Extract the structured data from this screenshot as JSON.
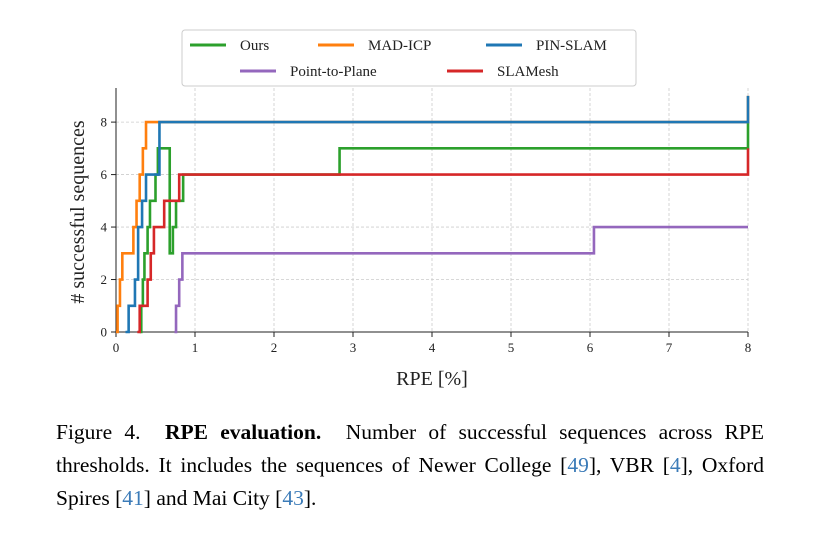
{
  "chart_data": {
    "type": "line",
    "subtype": "step",
    "xlabel": "RPE [%]",
    "ylabel": "# successful sequences",
    "xlim": [
      0,
      8
    ],
    "ylim": [
      0,
      9.3
    ],
    "x_ticks": [
      0,
      1,
      2,
      3,
      4,
      5,
      6,
      7,
      8
    ],
    "y_ticks": [
      0,
      2,
      4,
      6,
      8
    ],
    "grid": true,
    "legend_position": "top-center",
    "series": [
      {
        "name": "Ours",
        "color": "#2ca02c",
        "x": [
          0.3,
          0.32,
          0.34,
          0.36,
          0.4,
          0.43,
          0.5,
          0.53,
          0.68,
          0.72,
          0.76,
          0.85,
          2.83,
          8.0
        ],
        "y": [
          0,
          1,
          2,
          3,
          4,
          5,
          6,
          7,
          3,
          4,
          5,
          6,
          7,
          8
        ]
      },
      {
        "name": "MAD-ICP",
        "color": "#ff7f0e",
        "x": [
          0.0,
          0.02,
          0.05,
          0.08,
          0.22,
          0.26,
          0.3,
          0.34,
          0.38,
          8.0
        ],
        "y": [
          0,
          1,
          2,
          3,
          4,
          5,
          6,
          7,
          8,
          9
        ]
      },
      {
        "name": "PIN-SLAM",
        "color": "#1f77b4",
        "x": [
          0.12,
          0.16,
          0.24,
          0.28,
          0.33,
          0.38,
          0.55,
          8.0
        ],
        "y": [
          0,
          1,
          2,
          4,
          5,
          6,
          8,
          9
        ]
      },
      {
        "name": "Point-to-Plane",
        "color": "#9467bd",
        "x": [
          0.74,
          0.76,
          0.8,
          0.84,
          6.05,
          8.0
        ],
        "y": [
          0,
          1,
          2,
          3,
          4,
          4
        ]
      },
      {
        "name": "SLAMesh",
        "color": "#d62728",
        "x": [
          0.27,
          0.3,
          0.4,
          0.44,
          0.48,
          0.61,
          0.8,
          8.0
        ],
        "y": [
          0,
          1,
          2,
          3,
          4,
          5,
          6,
          7
        ]
      }
    ]
  },
  "caption": {
    "lead": "Figure 4.",
    "title": "RPE evaluation.",
    "text_before_refs": "Number of successful sequences across RPE thresholds. It includes the sequences of Newer College [",
    "ref_1": "49",
    "text_2": "], VBR [",
    "ref_2": "4",
    "text_3": "], Oxford Spires [",
    "ref_3": "41",
    "text_4": "] and Mai City [",
    "ref_4": "43",
    "text_end": "]."
  }
}
